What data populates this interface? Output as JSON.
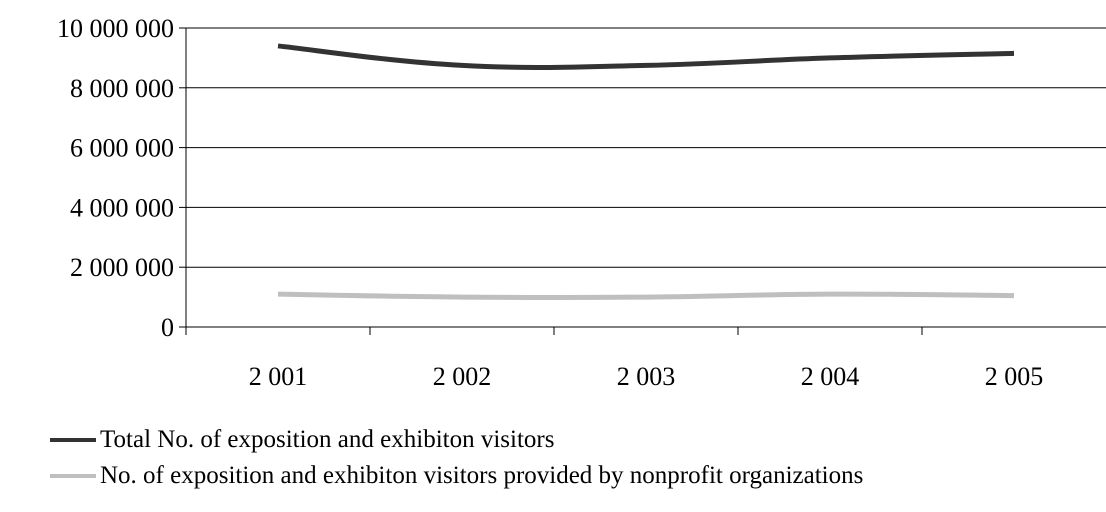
{
  "chart_data": {
    "type": "line",
    "title": "",
    "xlabel": "",
    "ylabel": "",
    "categories": [
      "2 001",
      "2 002",
      "2 003",
      "2 004",
      "2 005"
    ],
    "ylim": [
      0,
      10000000
    ],
    "yticks": [
      0,
      2000000,
      4000000,
      6000000,
      8000000,
      10000000
    ],
    "ytick_labels": [
      "0",
      "2 000 000",
      "4 000 000",
      "6 000 000",
      "8 000 000",
      "10 000 000"
    ],
    "grid": true,
    "legend_position": "bottom",
    "series": [
      {
        "name": "Total No. of exposition and exhibiton visitors",
        "color": "#333333",
        "values": [
          9400000,
          8750000,
          8750000,
          9000000,
          9150000
        ]
      },
      {
        "name": "No. of exposition and exhibiton visitors provided by nonprofit organizations",
        "color": "#bfbfbf",
        "values": [
          1100000,
          1000000,
          1000000,
          1100000,
          1050000
        ]
      }
    ]
  }
}
